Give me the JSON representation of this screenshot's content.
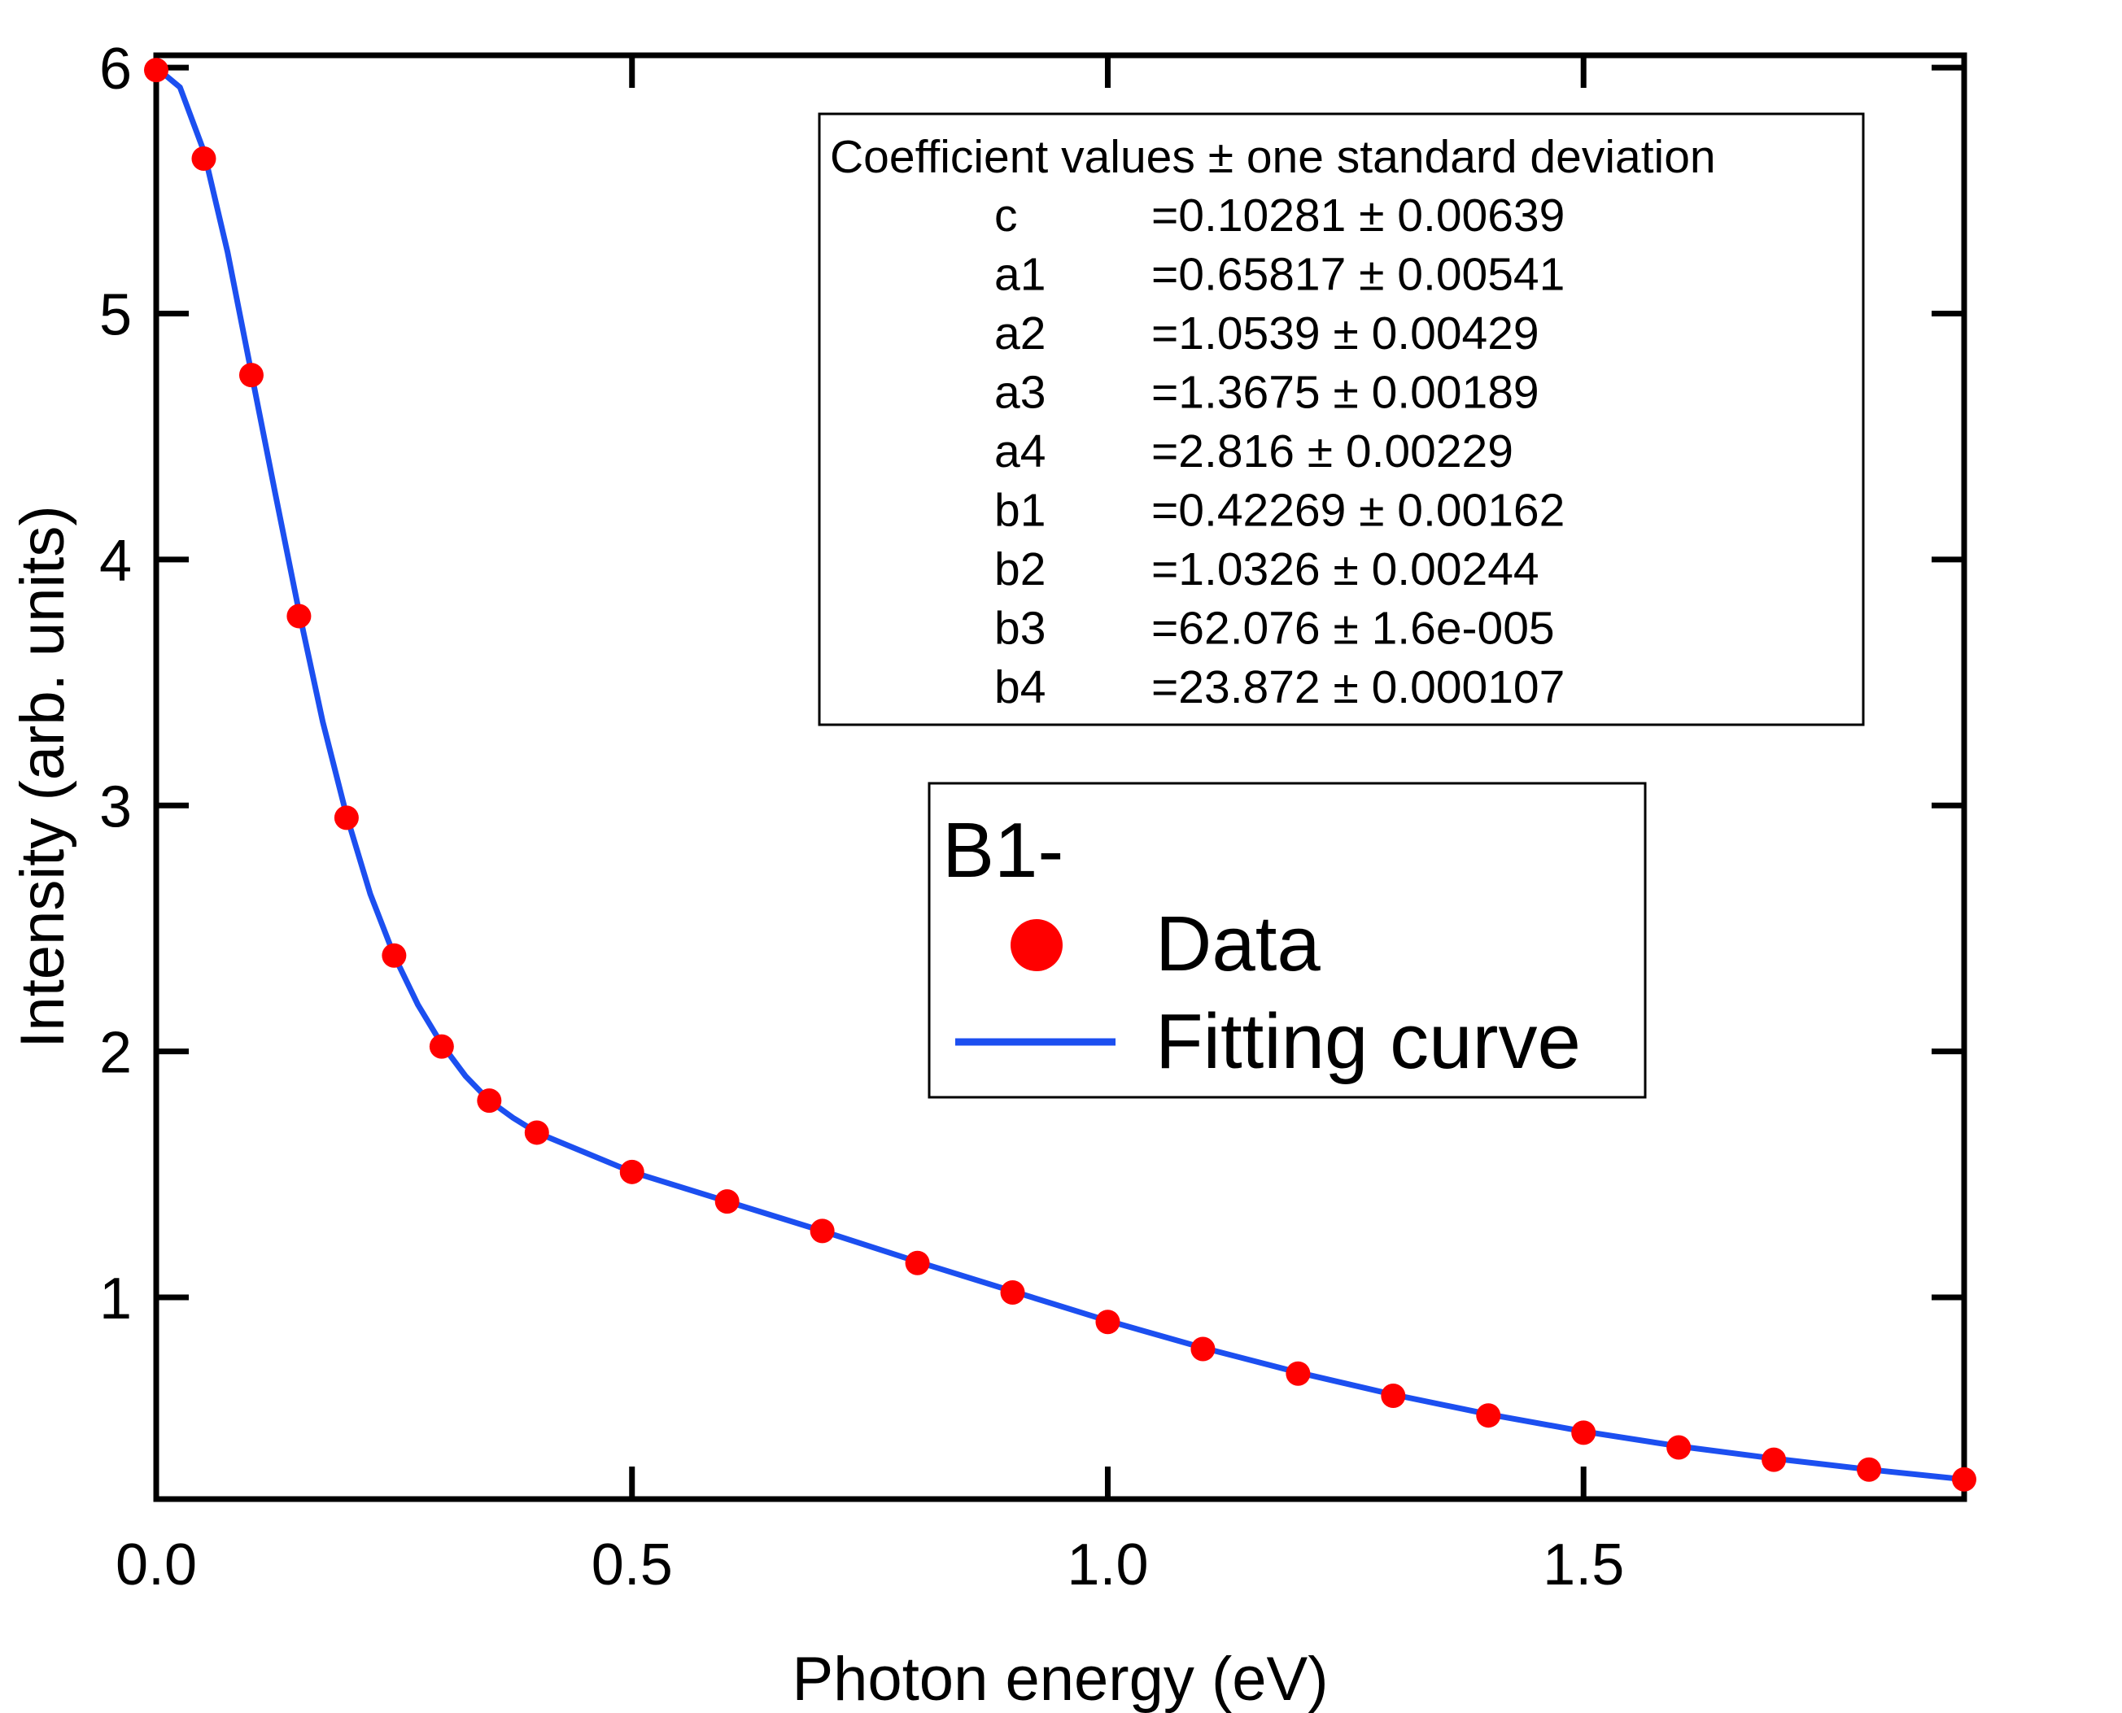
{
  "chart_data": {
    "type": "scatter",
    "xlabel": "Photon energy (eV)",
    "ylabel": "Intensity (arb. units)",
    "xlim": [
      0,
      1.9
    ],
    "ylim": [
      0.18,
      6.05
    ],
    "x_ticks": [
      0.0,
      0.5,
      1.0,
      1.5
    ],
    "x_tick_labels": [
      "0.0",
      "0.5",
      "1.0",
      "1.5"
    ],
    "y_ticks": [
      1,
      2,
      3,
      4,
      5,
      6
    ],
    "y_tick_labels": [
      "1",
      "2",
      "3",
      "4",
      "5",
      "6"
    ],
    "grid": false,
    "series": [
      {
        "name": "Data",
        "style": "markers",
        "color": "#ff0000",
        "points": [
          [
            0.0,
            5.99
          ],
          [
            0.05,
            5.63
          ],
          [
            0.1,
            4.75
          ],
          [
            0.15,
            3.77
          ],
          [
            0.2,
            2.95
          ],
          [
            0.25,
            2.39
          ],
          [
            0.3,
            2.02
          ],
          [
            0.35,
            1.8
          ],
          [
            0.4,
            1.67
          ],
          [
            0.5,
            1.51
          ],
          [
            0.6,
            1.39
          ],
          [
            0.7,
            1.27
          ],
          [
            0.8,
            1.14
          ],
          [
            0.9,
            1.02
          ],
          [
            1.0,
            0.9
          ],
          [
            1.1,
            0.79
          ],
          [
            1.2,
            0.69
          ],
          [
            1.3,
            0.6
          ],
          [
            1.4,
            0.52
          ],
          [
            1.5,
            0.45
          ],
          [
            1.6,
            0.39
          ],
          [
            1.7,
            0.34
          ],
          [
            1.8,
            0.3
          ],
          [
            1.9,
            0.26
          ]
        ]
      },
      {
        "name": "Fitting curve",
        "style": "line",
        "color": "#1c4ff0",
        "points": [
          [
            0.0,
            6.0
          ],
          [
            0.025,
            5.92
          ],
          [
            0.05,
            5.66
          ],
          [
            0.075,
            5.25
          ],
          [
            0.1,
            4.76
          ],
          [
            0.125,
            4.27
          ],
          [
            0.15,
            3.79
          ],
          [
            0.175,
            3.34
          ],
          [
            0.2,
            2.96
          ],
          [
            0.225,
            2.64
          ],
          [
            0.25,
            2.39
          ],
          [
            0.275,
            2.19
          ],
          [
            0.3,
            2.03
          ],
          [
            0.325,
            1.9
          ],
          [
            0.35,
            1.8
          ],
          [
            0.375,
            1.73
          ],
          [
            0.4,
            1.67
          ],
          [
            0.45,
            1.59
          ],
          [
            0.5,
            1.51
          ],
          [
            0.6,
            1.39
          ],
          [
            0.7,
            1.27
          ],
          [
            0.8,
            1.145
          ],
          [
            0.9,
            1.025
          ],
          [
            1.0,
            0.905
          ],
          [
            1.1,
            0.795
          ],
          [
            1.2,
            0.695
          ],
          [
            1.3,
            0.605
          ],
          [
            1.4,
            0.525
          ],
          [
            1.5,
            0.455
          ],
          [
            1.6,
            0.395
          ],
          [
            1.7,
            0.345
          ],
          [
            1.8,
            0.3
          ],
          [
            1.9,
            0.26
          ]
        ]
      }
    ],
    "coefficient_box": {
      "header": "Coefficient values ±  one standard deviation",
      "rows": [
        {
          "name": "c",
          "value": "=0.10281 ± 0.00639"
        },
        {
          "name": "a1",
          "value": "=0.65817 ± 0.00541"
        },
        {
          "name": "a2",
          "value": "=1.0539 ± 0.00429"
        },
        {
          "name": "a3",
          "value": "=1.3675 ± 0.00189"
        },
        {
          "name": "a4",
          "value": "=2.816 ± 0.00229"
        },
        {
          "name": "b1",
          "value": "=0.42269 ± 0.00162"
        },
        {
          "name": "b2",
          "value": "=1.0326 ± 0.00244"
        },
        {
          "name": "b3",
          "value": "=62.076 ± 1.6e-005"
        },
        {
          "name": "b4",
          "value": "=23.872 ± 0.000107"
        }
      ]
    },
    "legend": {
      "title": "B1-",
      "position": "center-right",
      "items": [
        {
          "label": "Data",
          "marker": "circle",
          "color": "#ff0000"
        },
        {
          "label": "Fitting curve",
          "marker": "line",
          "color": "#1c4ff0"
        }
      ]
    }
  }
}
